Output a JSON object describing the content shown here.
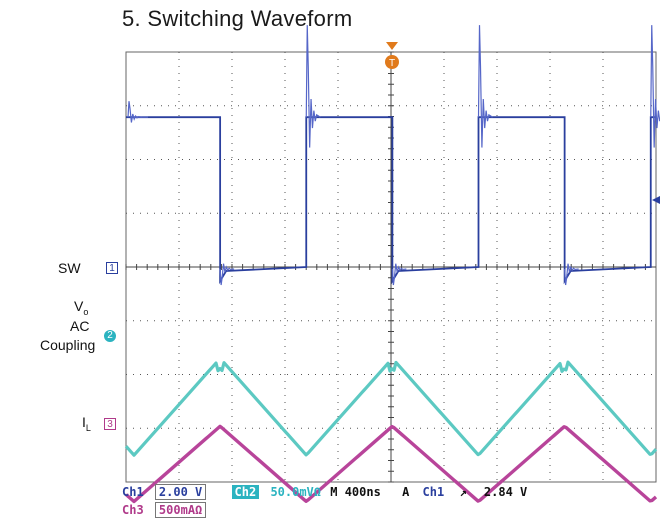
{
  "title": "5. Switching Waveform",
  "labels": {
    "sw": "SW",
    "vo_main": "V",
    "vo_sub": "o",
    "ac": "AC",
    "coupling": "Coupling",
    "il_main": "I",
    "il_sub": "L"
  },
  "markers": {
    "ch1": "1",
    "ch2": "2",
    "ch3": "3",
    "trigger": "T"
  },
  "status": {
    "ch1_name": "Ch1",
    "ch1_scale": "2.00 V",
    "ch2_name": "Ch2",
    "ch2_scale": "50.0mVΩ",
    "timebase": "M 400ns",
    "trig_mode": "A",
    "trig_src": "Ch1",
    "trig_slope": "↗",
    "trig_level": "2.84 V",
    "ch3_name": "Ch3",
    "ch3_scale": "500mAΩ"
  },
  "colors": {
    "ch1": "#2a3f9e",
    "ch2": "#5cc9c2",
    "ch3": "#b8449a",
    "grid": "#555555"
  },
  "chart_data": {
    "type": "line",
    "x_divisions": 10,
    "y_divisions": 8,
    "time_per_div_ns": 400,
    "grid": true,
    "series": [
      {
        "name": "SW",
        "channel": "Ch1",
        "volts_per_div": 2.0,
        "switch_period_ns": 1300,
        "duty": 0.5,
        "high_div": 2.75,
        "low_div": 0.0
      },
      {
        "name": "Vo AC Coupling",
        "channel": "Ch2",
        "volts_per_div": 0.05,
        "peak_to_peak_div": 1.8
      },
      {
        "name": "IL",
        "channel": "Ch3",
        "amps_per_div": 0.5,
        "peak_to_peak_div": 1.4
      }
    ]
  }
}
